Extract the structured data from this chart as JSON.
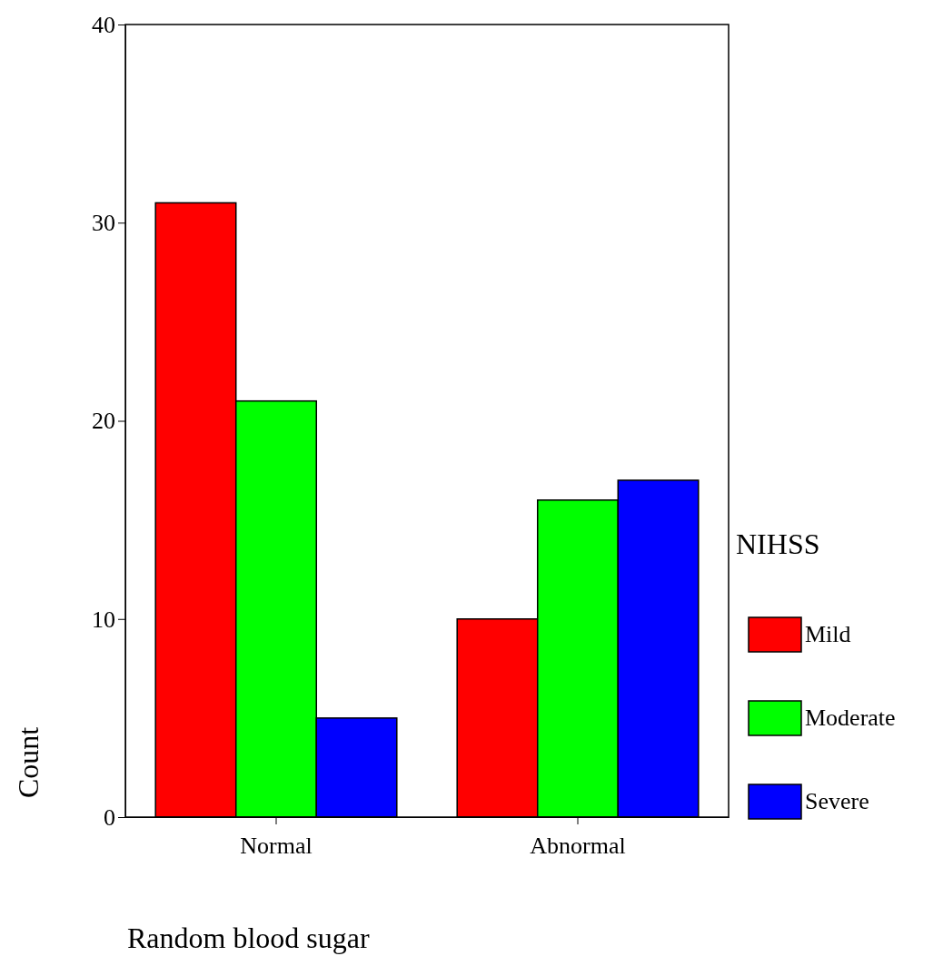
{
  "chart_data": {
    "type": "bar",
    "xlabel": "Random blood sugar",
    "ylabel": "Count",
    "legend_title": "NIHSS",
    "legend": "right",
    "grid": false,
    "categories": [
      "Normal",
      "Abnormal"
    ],
    "ylim": [
      0,
      40
    ],
    "yticks": [
      0,
      10,
      20,
      30,
      40
    ],
    "series": [
      {
        "name": "Mild",
        "color": "#ff0000",
        "values": [
          31,
          10
        ]
      },
      {
        "name": "Moderate",
        "color": "#00ff00",
        "values": [
          21,
          16
        ]
      },
      {
        "name": "Severe",
        "color": "#0000ff",
        "values": [
          5,
          17
        ]
      }
    ]
  }
}
